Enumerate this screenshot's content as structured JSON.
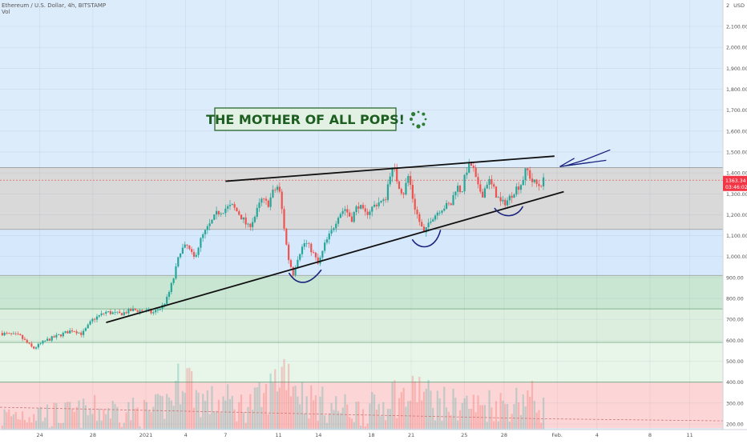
{
  "header": {
    "symbol_line": "Ethereum / U.S. Dollar, 4h, BITSTAMP",
    "volume_label": "Vol"
  },
  "annotation": {
    "title": "THE MOTHER OF ALL POPS!",
    "title_color": "#1b5e20",
    "spinner_icon": "loading-dots-icon"
  },
  "price_badge": {
    "price": "1363.34",
    "countdown": "03:46:02",
    "color": "#f23645"
  },
  "chart_data": {
    "type": "candlestick",
    "currency": "USD",
    "ylim": [
      180,
      2200
    ],
    "y_ticks": [
      "2,100.00",
      "2,000.00",
      "1,900.00",
      "1,800.00",
      "1,700.00",
      "1,600.00",
      "1,500.00",
      "1,400.00",
      "1,300.00",
      "1,200.00",
      "1,100.00",
      "1,000.00",
      "900.00",
      "800.00",
      "700.00",
      "600.00",
      "500.00",
      "400.00",
      "300.00",
      "200.00"
    ],
    "top_tick": "2",
    "top_unit": "USD",
    "x_ticks": [
      "24",
      "28",
      "2021",
      "4",
      "7",
      "11",
      "14",
      "18",
      "21",
      "25",
      "28",
      "Feb.",
      "4",
      "8",
      "11"
    ],
    "x_tick_days": [
      -8,
      -4,
      0,
      3,
      6,
      10,
      13,
      17,
      20,
      24,
      27,
      31,
      34,
      38,
      41
    ],
    "x_range_days": [
      -11,
      43.5
    ],
    "zones": [
      {
        "from": 1130,
        "to": 1425,
        "color": "#d9d9d9"
      },
      {
        "from": 910,
        "to": 1130,
        "color": "#d6e8fb"
      },
      {
        "from": 750,
        "to": 910,
        "color": "#c9e6d3"
      },
      {
        "from": 590,
        "to": 750,
        "color": "#dcefdf"
      },
      {
        "from": 400,
        "to": 590,
        "color": "#e8f5e9"
      },
      {
        "from": 180,
        "to": 400,
        "color": "#fcd6d6"
      }
    ],
    "zone_colors_above": "#ddecfb",
    "zone_lines": [
      1425,
      1365,
      1130,
      910,
      750,
      590,
      400
    ],
    "price_path": [
      [
        -11,
        635
      ],
      [
        -9.5,
        620
      ],
      [
        -8.5,
        560
      ],
      [
        -7.5,
        600
      ],
      [
        -6.5,
        625
      ],
      [
        -5.5,
        650
      ],
      [
        -4.8,
        630
      ],
      [
        -4,
        700
      ],
      [
        -3,
        735
      ],
      [
        -2,
        725
      ],
      [
        -1,
        745
      ],
      [
        0,
        740
      ],
      [
        0.5,
        730
      ],
      [
        1.2,
        760
      ],
      [
        1.6,
        800
      ],
      [
        2.1,
        900
      ],
      [
        2.6,
        1030
      ],
      [
        3.1,
        1050
      ],
      [
        3.6,
        990
      ],
      [
        4.2,
        1090
      ],
      [
        4.8,
        1150
      ],
      [
        5.4,
        1210
      ],
      [
        6,
        1230
      ],
      [
        6.5,
        1240
      ],
      [
        7.1,
        1200
      ],
      [
        7.7,
        1140
      ],
      [
        8.2,
        1190
      ],
      [
        8.7,
        1270
      ],
      [
        9.2,
        1250
      ],
      [
        9.6,
        1310
      ],
      [
        10,
        1340
      ],
      [
        10.3,
        1200
      ],
      [
        10.7,
        1000
      ],
      [
        11.1,
        920
      ],
      [
        11.5,
        1010
      ],
      [
        12,
        1070
      ],
      [
        12.5,
        1030
      ],
      [
        13,
        960
      ],
      [
        13.5,
        1060
      ],
      [
        14,
        1120
      ],
      [
        14.5,
        1200
      ],
      [
        15,
        1230
      ],
      [
        15.5,
        1180
      ],
      [
        16,
        1250
      ],
      [
        16.5,
        1200
      ],
      [
        17,
        1230
      ],
      [
        17.5,
        1260
      ],
      [
        18,
        1260
      ],
      [
        18.4,
        1400
      ],
      [
        18.7,
        1420
      ],
      [
        19,
        1350
      ],
      [
        19.4,
        1300
      ],
      [
        19.8,
        1390
      ],
      [
        20.2,
        1250
      ],
      [
        20.6,
        1170
      ],
      [
        21,
        1100
      ],
      [
        21.4,
        1180
      ],
      [
        21.8,
        1200
      ],
      [
        22.2,
        1230
      ],
      [
        22.6,
        1240
      ],
      [
        23,
        1250
      ],
      [
        23.4,
        1340
      ],
      [
        23.8,
        1310
      ],
      [
        24.2,
        1420
      ],
      [
        24.6,
        1440
      ],
      [
        25,
        1330
      ],
      [
        25.4,
        1300
      ],
      [
        25.8,
        1370
      ],
      [
        26.3,
        1310
      ],
      [
        26.8,
        1250
      ],
      [
        27.3,
        1270
      ],
      [
        27.8,
        1320
      ],
      [
        28.3,
        1350
      ],
      [
        28.7,
        1420
      ],
      [
        29.1,
        1360
      ],
      [
        29.6,
        1340
      ],
      [
        30,
        1363
      ]
    ],
    "volume_path": [
      [
        -11,
        230
      ],
      [
        -9.5,
        250
      ],
      [
        -8.5,
        260
      ],
      [
        -7,
        240
      ],
      [
        -5,
        250
      ],
      [
        -3,
        270
      ],
      [
        -1,
        260
      ],
      [
        0,
        250
      ],
      [
        1,
        270
      ],
      [
        2,
        330
      ],
      [
        2.5,
        400
      ],
      [
        3,
        460
      ],
      [
        3.5,
        380
      ],
      [
        4,
        320
      ],
      [
        5,
        300
      ],
      [
        6,
        310
      ],
      [
        7,
        280
      ],
      [
        8,
        300
      ],
      [
        9,
        320
      ],
      [
        10,
        430
      ],
      [
        10.5,
        480
      ],
      [
        11,
        420
      ],
      [
        12,
        320
      ],
      [
        13,
        300
      ],
      [
        14,
        280
      ],
      [
        15,
        270
      ],
      [
        16,
        265
      ],
      [
        17,
        270
      ],
      [
        18,
        300
      ],
      [
        18.5,
        360
      ],
      [
        19,
        320
      ],
      [
        20,
        330
      ],
      [
        20.5,
        380
      ],
      [
        21,
        340
      ],
      [
        22,
        300
      ],
      [
        23,
        290
      ],
      [
        24,
        300
      ],
      [
        25,
        280
      ],
      [
        26,
        300
      ],
      [
        27,
        290
      ],
      [
        28,
        310
      ],
      [
        28.7,
        340
      ],
      [
        29.5,
        300
      ],
      [
        30,
        270
      ]
    ],
    "volume_ma": [
      [
        -11,
        280
      ],
      [
        30,
        225
      ],
      [
        43.5,
        215
      ]
    ],
    "resistance_line": [
      [
        6,
        1360
      ],
      [
        30.8,
        1480
      ]
    ],
    "support_line": [
      [
        -3,
        685
      ],
      [
        31.5,
        1310
      ]
    ],
    "hand_arrow": [
      [
        31.7,
        1435
      ],
      [
        33,
        1460
      ],
      [
        34,
        1485
      ],
      [
        35,
        1510
      ]
    ],
    "hand_arrow_tip": [
      [
        32.3,
        1470
      ],
      [
        31.2,
        1430
      ],
      [
        33.5,
        1450
      ]
    ],
    "hand_curves": [
      [
        [
          10.8,
          920
        ],
        [
          11.4,
          860
        ],
        [
          12.3,
          860
        ],
        [
          13.2,
          935
        ]
      ],
      [
        [
          20.1,
          1080
        ],
        [
          20.6,
          1030
        ],
        [
          21.8,
          1030
        ],
        [
          22.2,
          1125
        ]
      ],
      [
        [
          26.3,
          1230
        ],
        [
          26.8,
          1185
        ],
        [
          27.9,
          1180
        ],
        [
          28.4,
          1238
        ]
      ]
    ]
  }
}
